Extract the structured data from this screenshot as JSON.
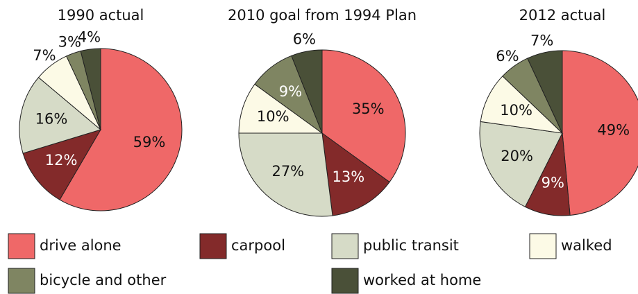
{
  "chart_data": [
    {
      "type": "pie",
      "title": "1990 actual",
      "categories": [
        "drive alone",
        "carpool",
        "public transit",
        "walked",
        "bicycle and other",
        "worked at home"
      ],
      "values": [
        59,
        12,
        16,
        7,
        3,
        4
      ],
      "value_labels": [
        "59%",
        "12%",
        "16%",
        "7%",
        "3%",
        "4%"
      ],
      "colors": [
        "#ef6868",
        "#832a2a",
        "#d6dbc7",
        "#fcfae6",
        "#7f8562",
        "#4a5038"
      ]
    },
    {
      "type": "pie",
      "title": "2010  goal from 1994 Plan",
      "categories": [
        "drive alone",
        "carpool",
        "public transit",
        "walked",
        "bicycle and other",
        "worked at home"
      ],
      "values": [
        35,
        13,
        27,
        10,
        9,
        6
      ],
      "value_labels": [
        "35%",
        "13%",
        "27%",
        "10%",
        "9%",
        "6%"
      ],
      "colors": [
        "#ef6868",
        "#832a2a",
        "#d6dbc7",
        "#fcfae6",
        "#7f8562",
        "#4a5038"
      ]
    },
    {
      "type": "pie",
      "title": "2012 actual",
      "categories": [
        "drive alone",
        "carpool",
        "public transit",
        "walked",
        "bicycle and other",
        "worked at home"
      ],
      "values": [
        49,
        9,
        20,
        10,
        6,
        7
      ],
      "value_labels": [
        "49%",
        "9%",
        "20%",
        "10%",
        "6%",
        "7%"
      ],
      "colors": [
        "#ef6868",
        "#832a2a",
        "#d6dbc7",
        "#fcfae6",
        "#7f8562",
        "#4a5038"
      ]
    }
  ]
}
